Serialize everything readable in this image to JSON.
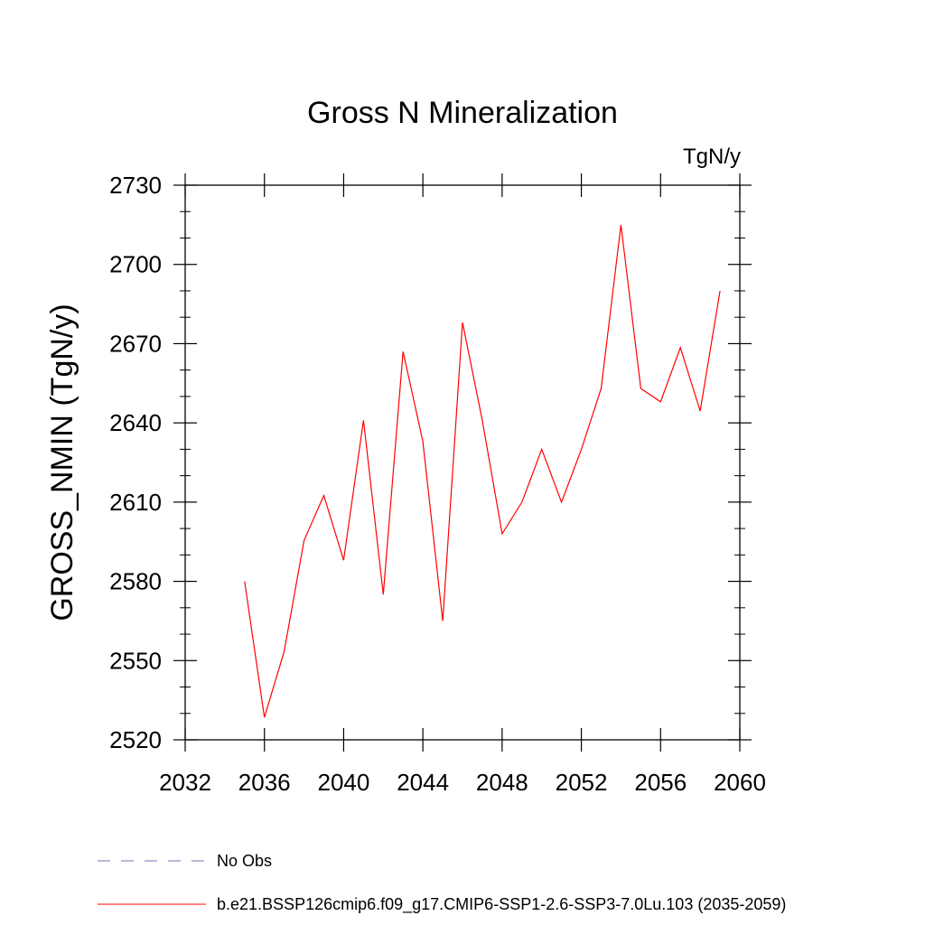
{
  "chart_data": {
    "type": "line",
    "title": "Gross N Mineralization",
    "units_label": "TgN/y",
    "ylabel": "GROSS_NMIN  (TgN/y)",
    "xlabel": "",
    "xlim": [
      2032,
      2060
    ],
    "ylim": [
      2520,
      2730
    ],
    "x_ticks": [
      2032,
      2036,
      2040,
      2044,
      2048,
      2052,
      2056,
      2060
    ],
    "y_ticks": [
      2520,
      2550,
      2580,
      2610,
      2640,
      2670,
      2700,
      2730
    ],
    "grid": false,
    "x": [
      2035,
      2036,
      2037,
      2038,
      2039,
      2040,
      2041,
      2042,
      2043,
      2044,
      2045,
      2046,
      2047,
      2048,
      2049,
      2050,
      2051,
      2052,
      2053,
      2054,
      2055,
      2056,
      2057,
      2058,
      2059
    ],
    "series": [
      {
        "name": "b.e21.BSSP126cmip6.f09_g17.CMIP6-SSP1-2.6-SSP3-7.0Lu.103 (2035-2059)",
        "color": "#ff0000",
        "values": [
          2580,
          2528.5,
          2553.5,
          2595.5,
          2612.5,
          2588,
          2641,
          2575,
          2667,
          2633,
          2565,
          2678,
          2641,
          2598,
          2610,
          2630,
          2610,
          2630,
          2653,
          2715,
          2653,
          2648,
          2668.5,
          2644.5,
          2690
        ]
      }
    ],
    "legend": {
      "placement": "bottom-left",
      "entries": [
        {
          "label": "No Obs",
          "color": "#7b6fb0",
          "style": "dashed"
        },
        {
          "label": "b.e21.BSSP126cmip6.f09_g17.CMIP6-SSP1-2.6-SSP3-7.0Lu.103 (2035-2059)",
          "color": "#ff0000",
          "style": "solid"
        }
      ]
    }
  }
}
